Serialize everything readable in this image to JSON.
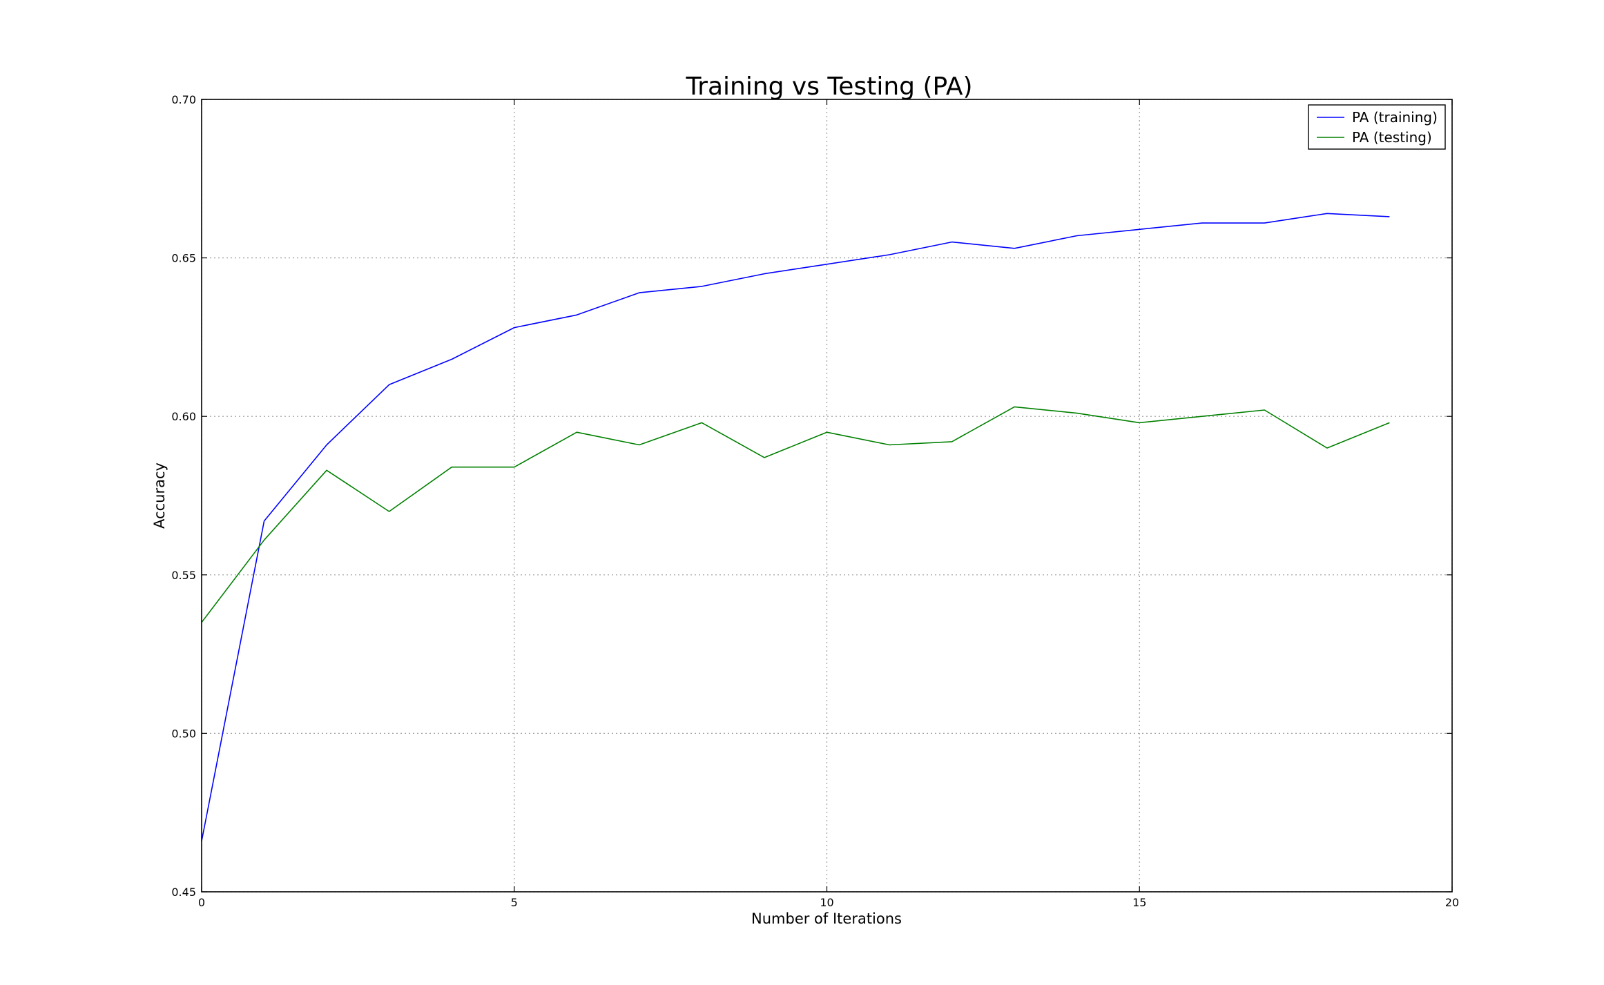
{
  "chart_data": {
    "type": "line",
    "title": "Training vs Testing (PA)",
    "xlabel": "Number of Iterations",
    "ylabel": "Accuracy",
    "xlim": [
      0,
      20
    ],
    "ylim": [
      0.45,
      0.7
    ],
    "x_ticks": [
      0,
      5,
      10,
      15,
      20
    ],
    "y_ticks": [
      0.45,
      0.5,
      0.55,
      0.6,
      0.65,
      0.7
    ],
    "x_tick_labels": [
      "0",
      "5",
      "10",
      "15",
      "20"
    ],
    "y_tick_labels": [
      "0.45",
      "0.50",
      "0.55",
      "0.60",
      "0.65",
      "0.70"
    ],
    "grid": true,
    "legend_position": "top-right",
    "x": [
      0,
      1,
      2,
      3,
      4,
      5,
      6,
      7,
      8,
      9,
      10,
      11,
      12,
      13,
      14,
      15,
      16,
      17,
      18,
      19
    ],
    "series": [
      {
        "name": "PA (training)",
        "color": "#0000ff",
        "values": [
          0.466,
          0.567,
          0.591,
          0.61,
          0.618,
          0.628,
          0.632,
          0.639,
          0.641,
          0.645,
          0.648,
          0.651,
          0.655,
          0.653,
          0.657,
          0.659,
          0.661,
          0.661,
          0.664,
          0.663
        ]
      },
      {
        "name": "PA (testing)",
        "color": "#008000",
        "values": [
          0.535,
          0.561,
          0.583,
          0.57,
          0.584,
          0.584,
          0.595,
          0.591,
          0.598,
          0.587,
          0.595,
          0.591,
          0.592,
          0.603,
          0.601,
          0.598,
          0.6,
          0.602,
          0.59,
          0.598
        ]
      }
    ]
  }
}
